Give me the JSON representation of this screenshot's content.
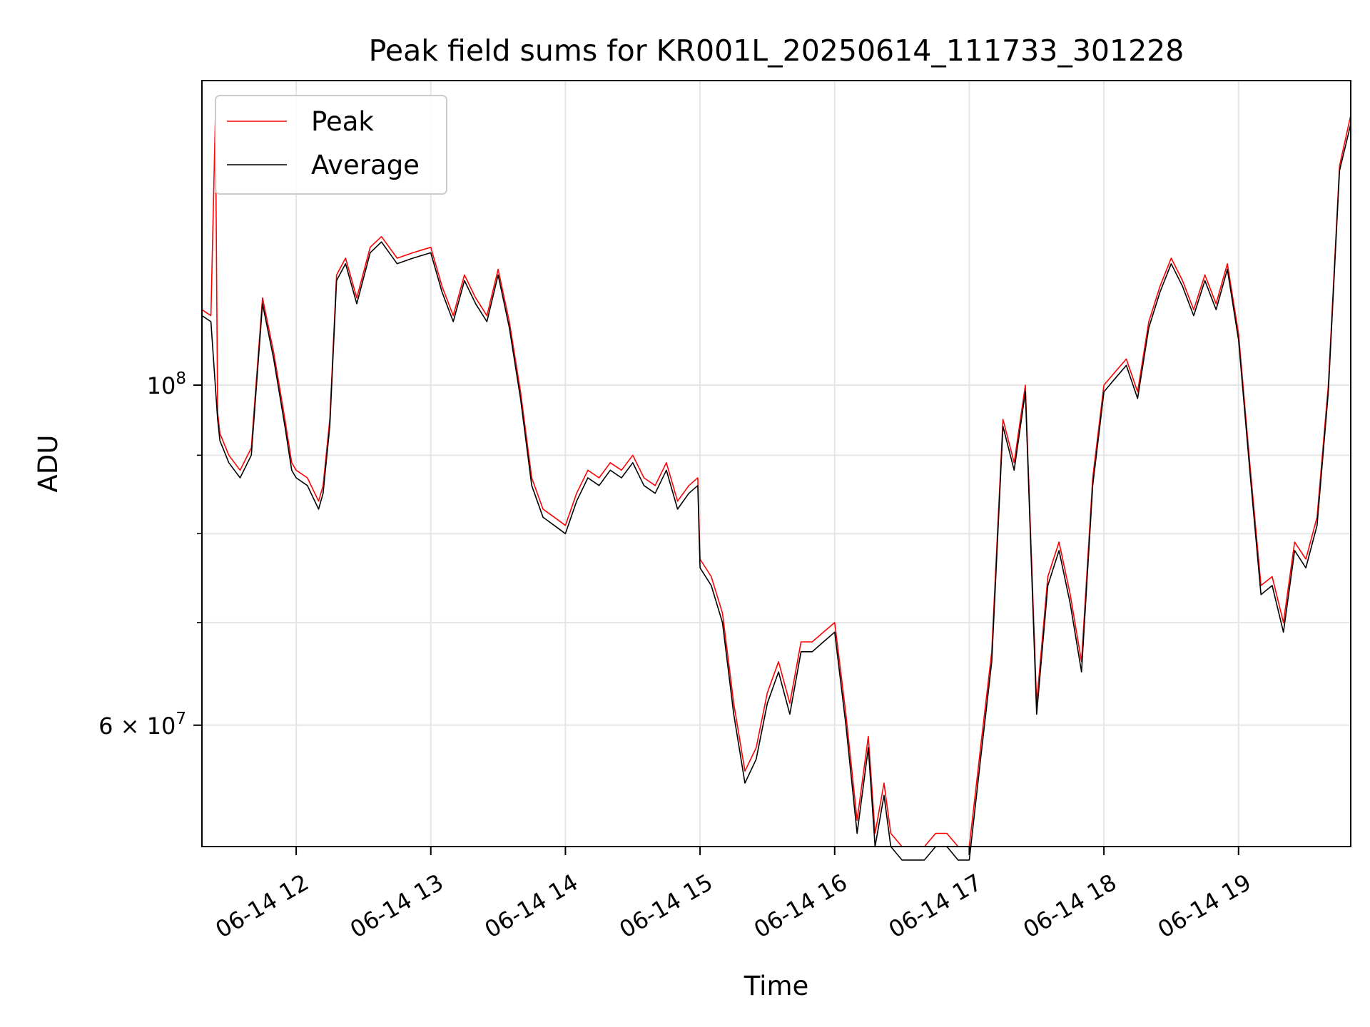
{
  "chart_data": {
    "type": "line",
    "title": "Peak field sums for KR001L_20250614_111733_301228",
    "xlabel": "Time",
    "ylabel": "ADU",
    "xscale": "time",
    "yscale": "log",
    "xlim": [
      "2025-06-14 11:18",
      "2025-06-14 19:50"
    ],
    "ylim": [
      50000000,
      158000000
    ],
    "xtick_labels": [
      "06-14 12",
      "06-14 13",
      "06-14 14",
      "06-14 15",
      "06-14 16",
      "06-14 17",
      "06-14 18",
      "06-14 19"
    ],
    "xtick_values": [
      "2025-06-14 12:00",
      "2025-06-14 13:00",
      "2025-06-14 14:00",
      "2025-06-14 15:00",
      "2025-06-14 16:00",
      "2025-06-14 17:00",
      "2025-06-14 18:00",
      "2025-06-14 19:00"
    ],
    "ytick_major": [
      {
        "value": 60000000,
        "base": "6 × 10",
        "exp": "7"
      },
      {
        "value": 100000000,
        "base": "10",
        "exp": "8"
      }
    ],
    "ytick_minor": [
      70000000,
      80000000,
      90000000
    ],
    "grid": true,
    "legend_position": "top-left",
    "legend": [
      "Peak",
      "Average"
    ],
    "series": [
      {
        "name": "Peak",
        "color": "#ff0000",
        "x": [
          "2025-06-14 11:18",
          "2025-06-14 11:22",
          "2025-06-14 11:24",
          "2025-06-14 11:25",
          "2025-06-14 11:26",
          "2025-06-14 11:30",
          "2025-06-14 11:35",
          "2025-06-14 11:40",
          "2025-06-14 11:45",
          "2025-06-14 11:50",
          "2025-06-14 11:55",
          "2025-06-14 11:58",
          "2025-06-14 12:00",
          "2025-06-14 12:05",
          "2025-06-14 12:10",
          "2025-06-14 12:12",
          "2025-06-14 12:15",
          "2025-06-14 12:18",
          "2025-06-14 12:22",
          "2025-06-14 12:27",
          "2025-06-14 12:33",
          "2025-06-14 12:38",
          "2025-06-14 12:45",
          "2025-06-14 12:52",
          "2025-06-14 13:00",
          "2025-06-14 13:05",
          "2025-06-14 13:10",
          "2025-06-14 13:15",
          "2025-06-14 13:20",
          "2025-06-14 13:25",
          "2025-06-14 13:30",
          "2025-06-14 13:35",
          "2025-06-14 13:40",
          "2025-06-14 13:45",
          "2025-06-14 13:50",
          "2025-06-14 13:55",
          "2025-06-14 14:00",
          "2025-06-14 14:05",
          "2025-06-14 14:10",
          "2025-06-14 14:15",
          "2025-06-14 14:20",
          "2025-06-14 14:25",
          "2025-06-14 14:30",
          "2025-06-14 14:35",
          "2025-06-14 14:40",
          "2025-06-14 14:45",
          "2025-06-14 14:50",
          "2025-06-14 14:55",
          "2025-06-14 14:59",
          "2025-06-14 15:00",
          "2025-06-14 15:05",
          "2025-06-14 15:10",
          "2025-06-14 15:15",
          "2025-06-14 15:20",
          "2025-06-14 15:25",
          "2025-06-14 15:30",
          "2025-06-14 15:35",
          "2025-06-14 15:40",
          "2025-06-14 15:45",
          "2025-06-14 15:50",
          "2025-06-14 15:55",
          "2025-06-14 16:00",
          "2025-06-14 16:05",
          "2025-06-14 16:10",
          "2025-06-14 16:15",
          "2025-06-14 16:18",
          "2025-06-14 16:22",
          "2025-06-14 16:25",
          "2025-06-14 16:30",
          "2025-06-14 16:35",
          "2025-06-14 16:40",
          "2025-06-14 16:45",
          "2025-06-14 16:50",
          "2025-06-14 16:55",
          "2025-06-14 17:00",
          "2025-06-14 17:05",
          "2025-06-14 17:10",
          "2025-06-14 17:15",
          "2025-06-14 17:20",
          "2025-06-14 17:25",
          "2025-06-14 17:30",
          "2025-06-14 17:35",
          "2025-06-14 17:40",
          "2025-06-14 17:45",
          "2025-06-14 17:50",
          "2025-06-14 17:55",
          "2025-06-14 18:00",
          "2025-06-14 18:05",
          "2025-06-14 18:10",
          "2025-06-14 18:15",
          "2025-06-14 18:20",
          "2025-06-14 18:25",
          "2025-06-14 18:30",
          "2025-06-14 18:35",
          "2025-06-14 18:40",
          "2025-06-14 18:45",
          "2025-06-14 18:50",
          "2025-06-14 18:55",
          "2025-06-14 19:00",
          "2025-06-14 19:05",
          "2025-06-14 19:10",
          "2025-06-14 19:15",
          "2025-06-14 19:20",
          "2025-06-14 19:25",
          "2025-06-14 19:30",
          "2025-06-14 19:35",
          "2025-06-14 19:40",
          "2025-06-14 19:45",
          "2025-06-14 19:50"
        ],
        "y": [
          112000000,
          111000000,
          150000000,
          96000000,
          93000000,
          90000000,
          88000000,
          91000000,
          114000000,
          105000000,
          95000000,
          89000000,
          88000000,
          87000000,
          84000000,
          86000000,
          95000000,
          118000000,
          121000000,
          114000000,
          123000000,
          125000000,
          121000000,
          122000000,
          123000000,
          116000000,
          111000000,
          118000000,
          114000000,
          111000000,
          119000000,
          110000000,
          99000000,
          87000000,
          83000000,
          82000000,
          81000000,
          85000000,
          88000000,
          87000000,
          89000000,
          88000000,
          90000000,
          87000000,
          86000000,
          89000000,
          84000000,
          86000000,
          87000000,
          77000000,
          75000000,
          71000000,
          62000000,
          56000000,
          58000000,
          63000000,
          66000000,
          62000000,
          68000000,
          68000000,
          69000000,
          70000000,
          61000000,
          52000000,
          59000000,
          51000000,
          55000000,
          51000000,
          50000000,
          50000000,
          50000000,
          51000000,
          51000000,
          50000000,
          50000000,
          58000000,
          67000000,
          95000000,
          89000000,
          100000000,
          62000000,
          75000000,
          79000000,
          73000000,
          66000000,
          87000000,
          100000000,
          102000000,
          104000000,
          99000000,
          110000000,
          116000000,
          121000000,
          117000000,
          112000000,
          118000000,
          113000000,
          120000000,
          108000000,
          89000000,
          74000000,
          75000000,
          70000000,
          79000000,
          77000000,
          82000000,
          100000000,
          139000000,
          150000000
        ]
      },
      {
        "name": "Average",
        "color": "#000000",
        "x": [
          "2025-06-14 11:18",
          "2025-06-14 11:22",
          "2025-06-14 11:25",
          "2025-06-14 11:26",
          "2025-06-14 11:30",
          "2025-06-14 11:35",
          "2025-06-14 11:40",
          "2025-06-14 11:45",
          "2025-06-14 11:50",
          "2025-06-14 11:55",
          "2025-06-14 11:58",
          "2025-06-14 12:00",
          "2025-06-14 12:05",
          "2025-06-14 12:10",
          "2025-06-14 12:12",
          "2025-06-14 12:15",
          "2025-06-14 12:18",
          "2025-06-14 12:22",
          "2025-06-14 12:27",
          "2025-06-14 12:33",
          "2025-06-14 12:38",
          "2025-06-14 12:45",
          "2025-06-14 12:52",
          "2025-06-14 13:00",
          "2025-06-14 13:05",
          "2025-06-14 13:10",
          "2025-06-14 13:15",
          "2025-06-14 13:20",
          "2025-06-14 13:25",
          "2025-06-14 13:30",
          "2025-06-14 13:35",
          "2025-06-14 13:40",
          "2025-06-14 13:45",
          "2025-06-14 13:50",
          "2025-06-14 13:55",
          "2025-06-14 14:00",
          "2025-06-14 14:05",
          "2025-06-14 14:10",
          "2025-06-14 14:15",
          "2025-06-14 14:20",
          "2025-06-14 14:25",
          "2025-06-14 14:30",
          "2025-06-14 14:35",
          "2025-06-14 14:40",
          "2025-06-14 14:45",
          "2025-06-14 14:50",
          "2025-06-14 14:55",
          "2025-06-14 14:59",
          "2025-06-14 15:00",
          "2025-06-14 15:05",
          "2025-06-14 15:10",
          "2025-06-14 15:15",
          "2025-06-14 15:20",
          "2025-06-14 15:25",
          "2025-06-14 15:30",
          "2025-06-14 15:35",
          "2025-06-14 15:40",
          "2025-06-14 15:45",
          "2025-06-14 15:50",
          "2025-06-14 15:55",
          "2025-06-14 16:00",
          "2025-06-14 16:05",
          "2025-06-14 16:10",
          "2025-06-14 16:15",
          "2025-06-14 16:18",
          "2025-06-14 16:22",
          "2025-06-14 16:25",
          "2025-06-14 16:30",
          "2025-06-14 16:35",
          "2025-06-14 16:40",
          "2025-06-14 16:45",
          "2025-06-14 16:50",
          "2025-06-14 16:55",
          "2025-06-14 17:00",
          "2025-06-14 17:05",
          "2025-06-14 17:10",
          "2025-06-14 17:15",
          "2025-06-14 17:20",
          "2025-06-14 17:25",
          "2025-06-14 17:30",
          "2025-06-14 17:35",
          "2025-06-14 17:40",
          "2025-06-14 17:45",
          "2025-06-14 17:50",
          "2025-06-14 17:55",
          "2025-06-14 18:00",
          "2025-06-14 18:05",
          "2025-06-14 18:10",
          "2025-06-14 18:15",
          "2025-06-14 18:20",
          "2025-06-14 18:25",
          "2025-06-14 18:30",
          "2025-06-14 18:35",
          "2025-06-14 18:40",
          "2025-06-14 18:45",
          "2025-06-14 18:50",
          "2025-06-14 18:55",
          "2025-06-14 19:00",
          "2025-06-14 19:05",
          "2025-06-14 19:10",
          "2025-06-14 19:15",
          "2025-06-14 19:20",
          "2025-06-14 19:25",
          "2025-06-14 19:30",
          "2025-06-14 19:35",
          "2025-06-14 19:40",
          "2025-06-14 19:45",
          "2025-06-14 19:50"
        ],
        "y": [
          111000000,
          110000000,
          95000000,
          92000000,
          89000000,
          87000000,
          90000000,
          113000000,
          104000000,
          94000000,
          88000000,
          87000000,
          86000000,
          83000000,
          85000000,
          94000000,
          117000000,
          120000000,
          113000000,
          122000000,
          124000000,
          120000000,
          121000000,
          122000000,
          115000000,
          110000000,
          117000000,
          113000000,
          110000000,
          118000000,
          109000000,
          98000000,
          86000000,
          82000000,
          81000000,
          80000000,
          84000000,
          87000000,
          86000000,
          88000000,
          87000000,
          89000000,
          86000000,
          85000000,
          88000000,
          83000000,
          85000000,
          86000000,
          76000000,
          74000000,
          70000000,
          61000000,
          55000000,
          57000000,
          62000000,
          65000000,
          61000000,
          67000000,
          67000000,
          68000000,
          69000000,
          60000000,
          51000000,
          58000000,
          50000000,
          54000000,
          50000000,
          49000000,
          49000000,
          49000000,
          50000000,
          50000000,
          49000000,
          49000000,
          57000000,
          66000000,
          94000000,
          88000000,
          99000000,
          61000000,
          74000000,
          78000000,
          72000000,
          65000000,
          86000000,
          99000000,
          101000000,
          103000000,
          98000000,
          109000000,
          115000000,
          120000000,
          116000000,
          111000000,
          117000000,
          112000000,
          119000000,
          107000000,
          88000000,
          73000000,
          74000000,
          69000000,
          78000000,
          76000000,
          81000000,
          99000000,
          138000000,
          148000000
        ]
      }
    ]
  }
}
